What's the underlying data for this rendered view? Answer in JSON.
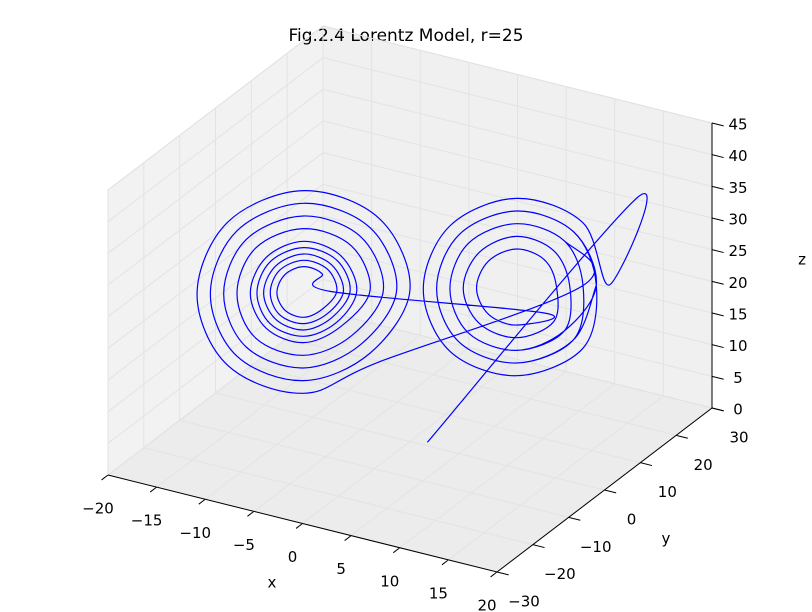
{
  "chart_data": {
    "type": "line3d",
    "title": "Fig.2.4 Lorentz Model, r=25",
    "xlabel": "x",
    "ylabel": "y",
    "zlabel": "z",
    "xlim": [
      -20,
      20
    ],
    "ylim": [
      -30,
      30
    ],
    "zlim": [
      0,
      45
    ],
    "xticks": [
      {
        "value": -20,
        "label": "−20"
      },
      {
        "value": -15,
        "label": "−15"
      },
      {
        "value": -10,
        "label": "−10"
      },
      {
        "value": -5,
        "label": "−5"
      },
      0,
      5,
      10,
      15,
      20
    ],
    "yticks": [
      {
        "value": -30,
        "label": "−30"
      },
      {
        "value": -20,
        "label": "−20"
      },
      {
        "value": -10,
        "label": "−10"
      },
      0,
      10,
      20,
      30
    ],
    "zticks": [
      0,
      5,
      10,
      15,
      20,
      25,
      30,
      35,
      40,
      45
    ],
    "grid": true,
    "color": "#0000ff",
    "x": [
      4,
      16,
      15,
      13,
      8,
      3,
      1,
      3,
      8,
      13,
      14,
      12.3,
      8,
      3.7,
      2,
      3.7,
      8,
      12.3,
      13,
      11.6,
      8,
      4.4,
      3,
      4.4,
      8,
      11.6,
      12,
      10.8,
      8,
      5.2,
      4,
      5.2,
      8,
      10.8,
      11,
      10.1,
      8,
      5.9,
      5,
      5.9,
      8,
      10.1,
      -6,
      -6.6,
      -8,
      -9.4,
      -10,
      -9.4,
      -8,
      -6.6,
      -5.5,
      -6.2,
      -8,
      -9.8,
      -10.5,
      -9.8,
      -8,
      -6.2,
      -5,
      -5.9,
      -8,
      -10.1,
      -11,
      -10.1,
      -8,
      -5.9,
      -4.5,
      -5.5,
      -8,
      -10.5,
      -11.5,
      -10.5,
      -8,
      -5.5,
      -4,
      -5.2,
      -8,
      -10.8,
      -12,
      -10.8,
      -8,
      -5.2,
      -3,
      -4.4,
      -8,
      -11.6,
      -13,
      -11.6,
      -8,
      -4.4,
      -2,
      -3.7,
      -8,
      -12.3,
      -14,
      -12.3,
      -8,
      -3.7,
      -1,
      -3,
      -8,
      -13,
      -15,
      -13,
      -8,
      -3,
      0,
      -2.3,
      -8,
      -13.7,
      -16,
      -13.7,
      -8,
      -2.3,
      13,
      11.6,
      8,
      4.4,
      3,
      4.4,
      8,
      11.6,
      14,
      12.3,
      8,
      3.7,
      2,
      3.7,
      8,
      12.3,
      14
    ],
    "y": [
      -6,
      20,
      15,
      13,
      8,
      3,
      1,
      3,
      8,
      13,
      14,
      12.3,
      8,
      3.7,
      2,
      3.7,
      8,
      12.3,
      13,
      11.6,
      8,
      4.4,
      3,
      4.4,
      8,
      11.6,
      12,
      10.8,
      8,
      5.2,
      4,
      5.2,
      8,
      10.8,
      11,
      10.1,
      8,
      5.9,
      5,
      5.9,
      8,
      10.1,
      -6,
      -6.6,
      -8,
      -9.4,
      -10,
      -9.4,
      -8,
      -6.6,
      -5.5,
      -6.2,
      -8,
      -9.8,
      -10.5,
      -9.8,
      -8,
      -6.2,
      -5,
      -5.9,
      -8,
      -10.1,
      -11,
      -10.1,
      -8,
      -5.9,
      -4.5,
      -5.5,
      -8,
      -10.5,
      -11.5,
      -10.5,
      -8,
      -5.5,
      -4,
      -5.2,
      -8,
      -10.8,
      -12,
      -10.8,
      -8,
      -5.2,
      -3,
      -4.4,
      -8,
      -11.6,
      -13,
      -11.6,
      -8,
      -4.4,
      -2,
      -3.7,
      -8,
      -12.3,
      -14,
      -12.3,
      -8,
      -3.7,
      -1,
      -3,
      -8,
      -13,
      -15,
      -13,
      -8,
      -3,
      0,
      -2.3,
      -8,
      -13.7,
      -16,
      -13.7,
      -8,
      -2.3,
      13,
      11.6,
      8,
      4.4,
      3,
      4.4,
      8,
      11.6,
      14,
      12.3,
      8,
      3.7,
      2,
      3.7,
      8,
      12.3,
      14
    ],
    "z": [
      4,
      36,
      24,
      33.9,
      38,
      33.9,
      24,
      14.1,
      10,
      14.1,
      24,
      32.5,
      36,
      32.5,
      24,
      15.5,
      12,
      15.5,
      24,
      31.1,
      34,
      31.1,
      24,
      16.9,
      14,
      16.9,
      24,
      29.6,
      32,
      29.6,
      24,
      18.4,
      16,
      18.4,
      24,
      28.2,
      30,
      28.2,
      24,
      19.8,
      18,
      19.8,
      24,
      26.8,
      28,
      26.8,
      24,
      21.2,
      20,
      21.2,
      24,
      27.5,
      29,
      27.5,
      24,
      20.5,
      19,
      20.5,
      24,
      28.2,
      30,
      28.2,
      24,
      19.8,
      18,
      19.8,
      24,
      28.9,
      31,
      28.9,
      24,
      19.1,
      17,
      19.1,
      24,
      29.6,
      32,
      29.6,
      24,
      18.4,
      16,
      18.4,
      24,
      31.1,
      34,
      31.1,
      24,
      16.9,
      14,
      16.9,
      24,
      32.5,
      36,
      32.5,
      24,
      15.5,
      12,
      15.5,
      24,
      33.9,
      38,
      33.9,
      24,
      14.1,
      10,
      14.1,
      24,
      35.3,
      40,
      35.3,
      24,
      12.7,
      8,
      12.7,
      24,
      31.1,
      34,
      31.1,
      24,
      16.9,
      14,
      16.9,
      24,
      32.5,
      36,
      32.5,
      24,
      15.5,
      12,
      15.5,
      24
    ]
  }
}
